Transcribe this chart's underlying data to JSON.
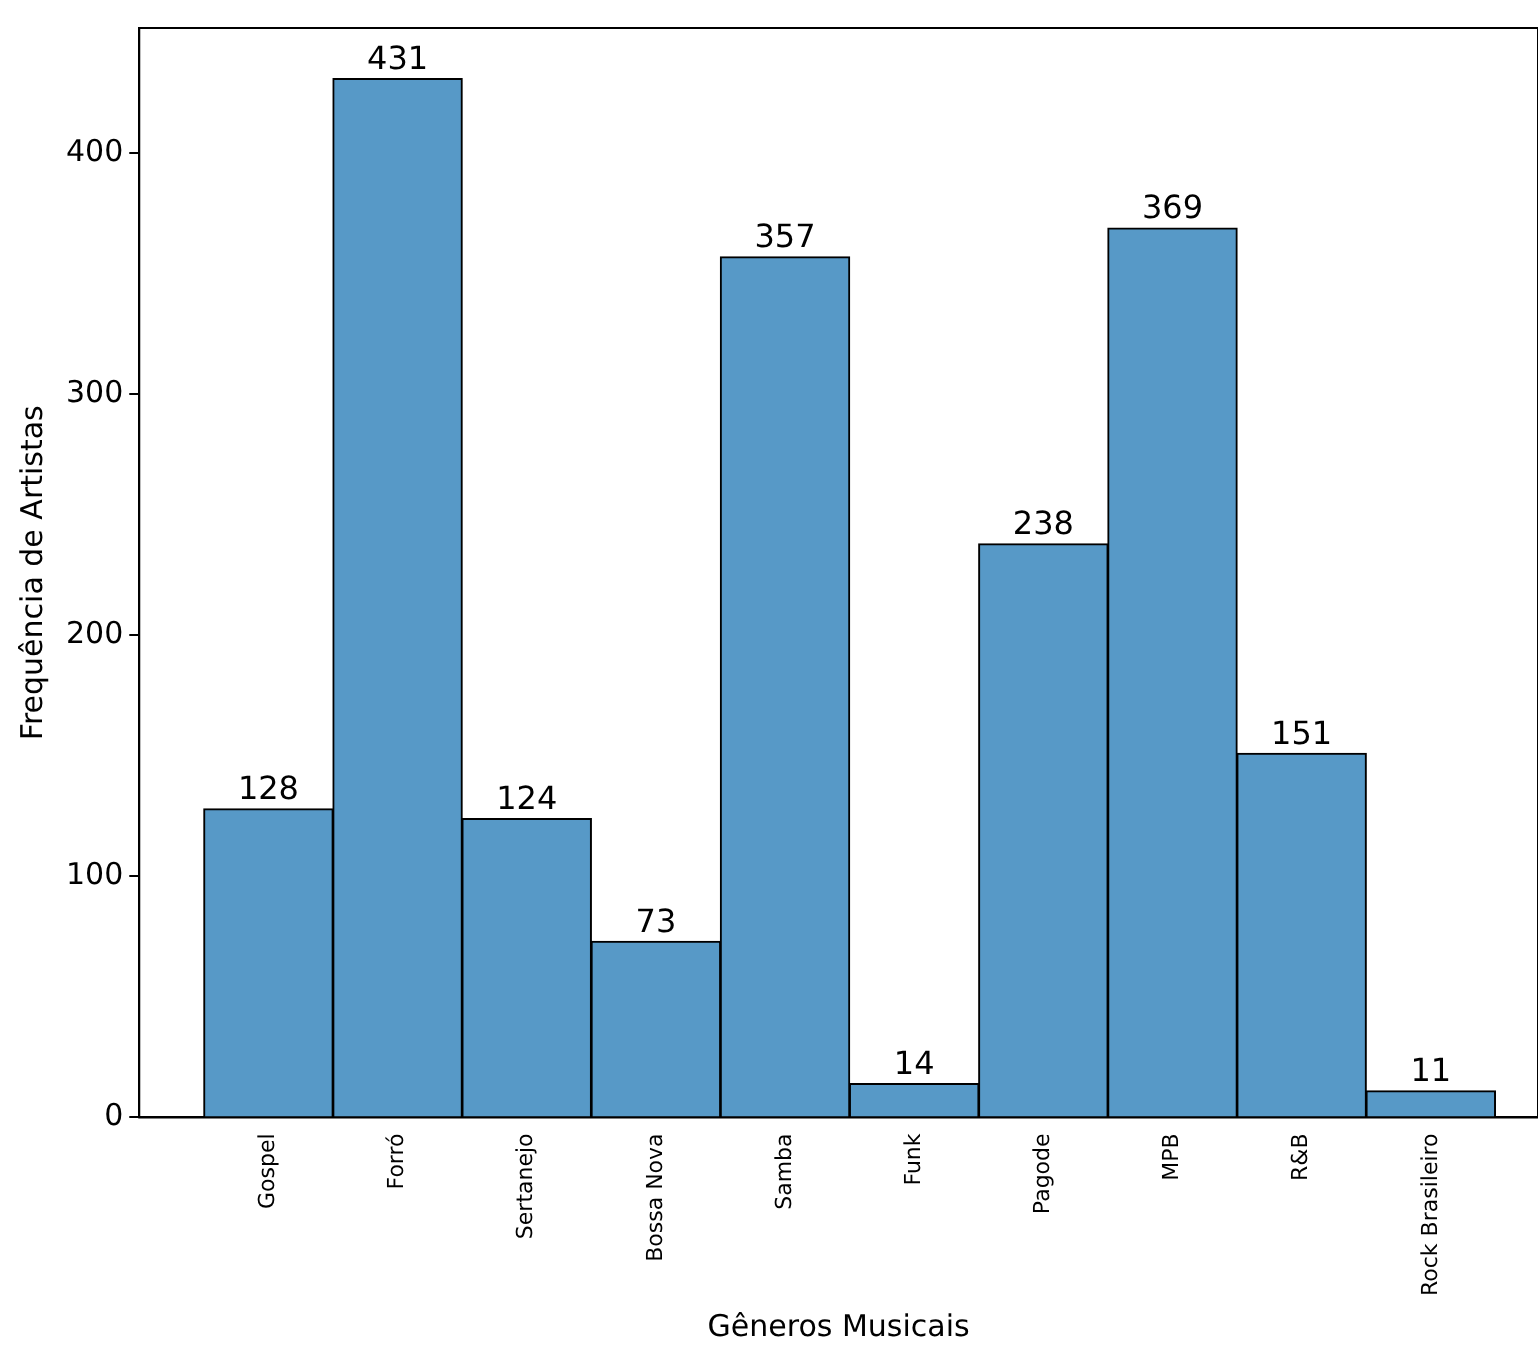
{
  "chart_data": {
    "type": "bar",
    "categories": [
      "Gospel",
      "Forró",
      "Sertanejo",
      "Bossa Nova",
      "Samba",
      "Funk",
      "Pagode",
      "MPB",
      "R&B",
      "Rock Brasileiro"
    ],
    "values": [
      128,
      431,
      124,
      73,
      357,
      14,
      238,
      369,
      151,
      11
    ],
    "color": "#5799c7",
    "xlabel": "Gêneros Musicais",
    "ylabel": "Frequência de Artistas",
    "ylim": [
      0,
      452
    ],
    "yticks": [
      0,
      100,
      200,
      300,
      400
    ],
    "data_labels": true,
    "grid": false,
    "legend": false
  }
}
